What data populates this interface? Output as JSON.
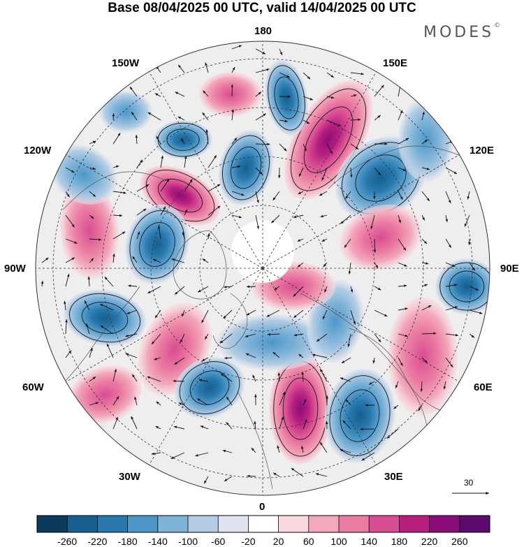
{
  "title": "Base 08/04/2025 00 UTC, valid 14/04/2025 00 UTC",
  "brand": "MODES",
  "brand_mark": "©",
  "longitude_labels": {
    "lon_180": "180",
    "lon_150w": "150W",
    "lon_150e": "150E",
    "lon_120w": "120W",
    "lon_120e": "120E",
    "lon_90w": "90W",
    "lon_90e": "90E",
    "lon_60w": "60W",
    "lon_60e": "60E",
    "lon_30w": "30W",
    "lon_30e": "30E",
    "lon_0": "0"
  },
  "reference_vector": "30",
  "colorbar": {
    "ticks": [
      "-260",
      "-220",
      "-180",
      "-140",
      "-100",
      "-60",
      "-20",
      "20",
      "60",
      "100",
      "140",
      "180",
      "220",
      "260"
    ],
    "colors": [
      "#0b3a5c",
      "#175f8f",
      "#2778ad",
      "#4d97c8",
      "#7eb3d8",
      "#b4cde4",
      "#dfe3ef",
      "#ffffff",
      "#fad8df",
      "#f3a9bb",
      "#ea7ba2",
      "#d94d92",
      "#b71f7f",
      "#8c0d78",
      "#5c0a6e"
    ]
  },
  "colors": {
    "negative_strong": "#175f8f",
    "negative_light": "#b4cde4",
    "positive_light": "#f3a9bb",
    "positive_strong": "#b71f7f",
    "land_gray": "#e9e9e9"
  }
}
